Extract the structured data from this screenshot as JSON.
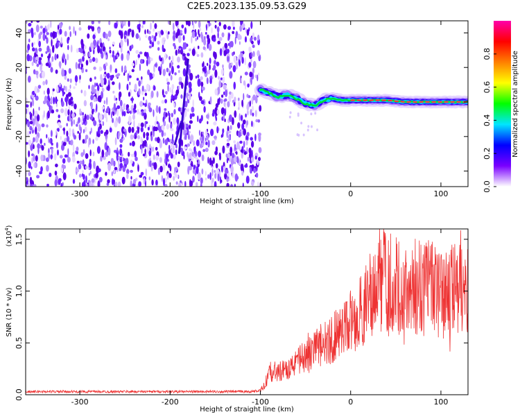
{
  "figure": {
    "title": "C2E5.2023.135.09.53.G29"
  },
  "chart_data": [
    {
      "type": "heatmap",
      "title": "C2E5.2023.135.09.53.G29",
      "xlabel": "Height of straight line (km)",
      "ylabel": "Frequency (Hz)",
      "xlim": [
        -360,
        130
      ],
      "ylim": [
        -49,
        47
      ],
      "xticks": [
        -300,
        -200,
        -100,
        0,
        100
      ],
      "yticks": [
        -40,
        -20,
        0,
        20,
        40
      ],
      "noise_region_x": [
        -360,
        -100
      ],
      "signal_track": {
        "x": [
          -100,
          -90,
          -80,
          -70,
          -60,
          -50,
          -40,
          -30,
          -20,
          -10,
          0,
          20,
          40,
          60,
          80,
          100,
          130
        ],
        "y": [
          7,
          5,
          3,
          4,
          2,
          -1,
          -2,
          1,
          2,
          1,
          1,
          1,
          1,
          0,
          0,
          0,
          0
        ]
      },
      "colorbar": {
        "label": "Normalized spectral amplitude",
        "range": [
          0,
          1
        ],
        "ticks": [
          0.0,
          0.2,
          0.4,
          0.6,
          0.8
        ],
        "tick_labels": [
          "0.0",
          "0.2",
          "0.4",
          "0.6",
          "0.8"
        ],
        "colormap": [
          "#ffffff",
          "#7a00ff",
          "#0000ff",
          "#00e5ff",
          "#00ff00",
          "#ffff00",
          "#ff8000",
          "#ff0000",
          "#ff00aa"
        ]
      }
    },
    {
      "type": "line",
      "xlabel": "Height of straight line (km)",
      "ylabel": "SNR (10 * v/v)",
      "y_multiplier": "(x10",
      "y_multiplier_exp": "4",
      "xlim": [
        -360,
        130
      ],
      "ylim": [
        0,
        1.6
      ],
      "xticks": [
        -300,
        -200,
        -100,
        0,
        100
      ],
      "yticks": [
        0.0,
        0.5,
        1.0,
        1.5
      ],
      "ytick_labels": [
        "0.0",
        "0.5",
        "1.0",
        "1.5"
      ],
      "series": [
        {
          "color": "#ee3333",
          "x": [
            -360,
            -300,
            -200,
            -110,
            -100,
            -95,
            -90,
            -80,
            -70,
            -60,
            -50,
            -40,
            -30,
            -20,
            -10,
            0,
            10,
            20,
            25,
            30,
            40,
            50,
            60,
            70,
            80,
            90,
            100,
            110,
            120,
            130
          ],
          "y": [
            0.03,
            0.03,
            0.03,
            0.03,
            0.04,
            0.1,
            0.2,
            0.22,
            0.25,
            0.3,
            0.4,
            0.45,
            0.48,
            0.55,
            0.6,
            0.7,
            0.8,
            0.9,
            1.0,
            1.2,
            1.1,
            1.05,
            1.0,
            1.05,
            1.0,
            1.05,
            0.95,
            1.0,
            1.05,
            1.0
          ]
        }
      ]
    }
  ]
}
